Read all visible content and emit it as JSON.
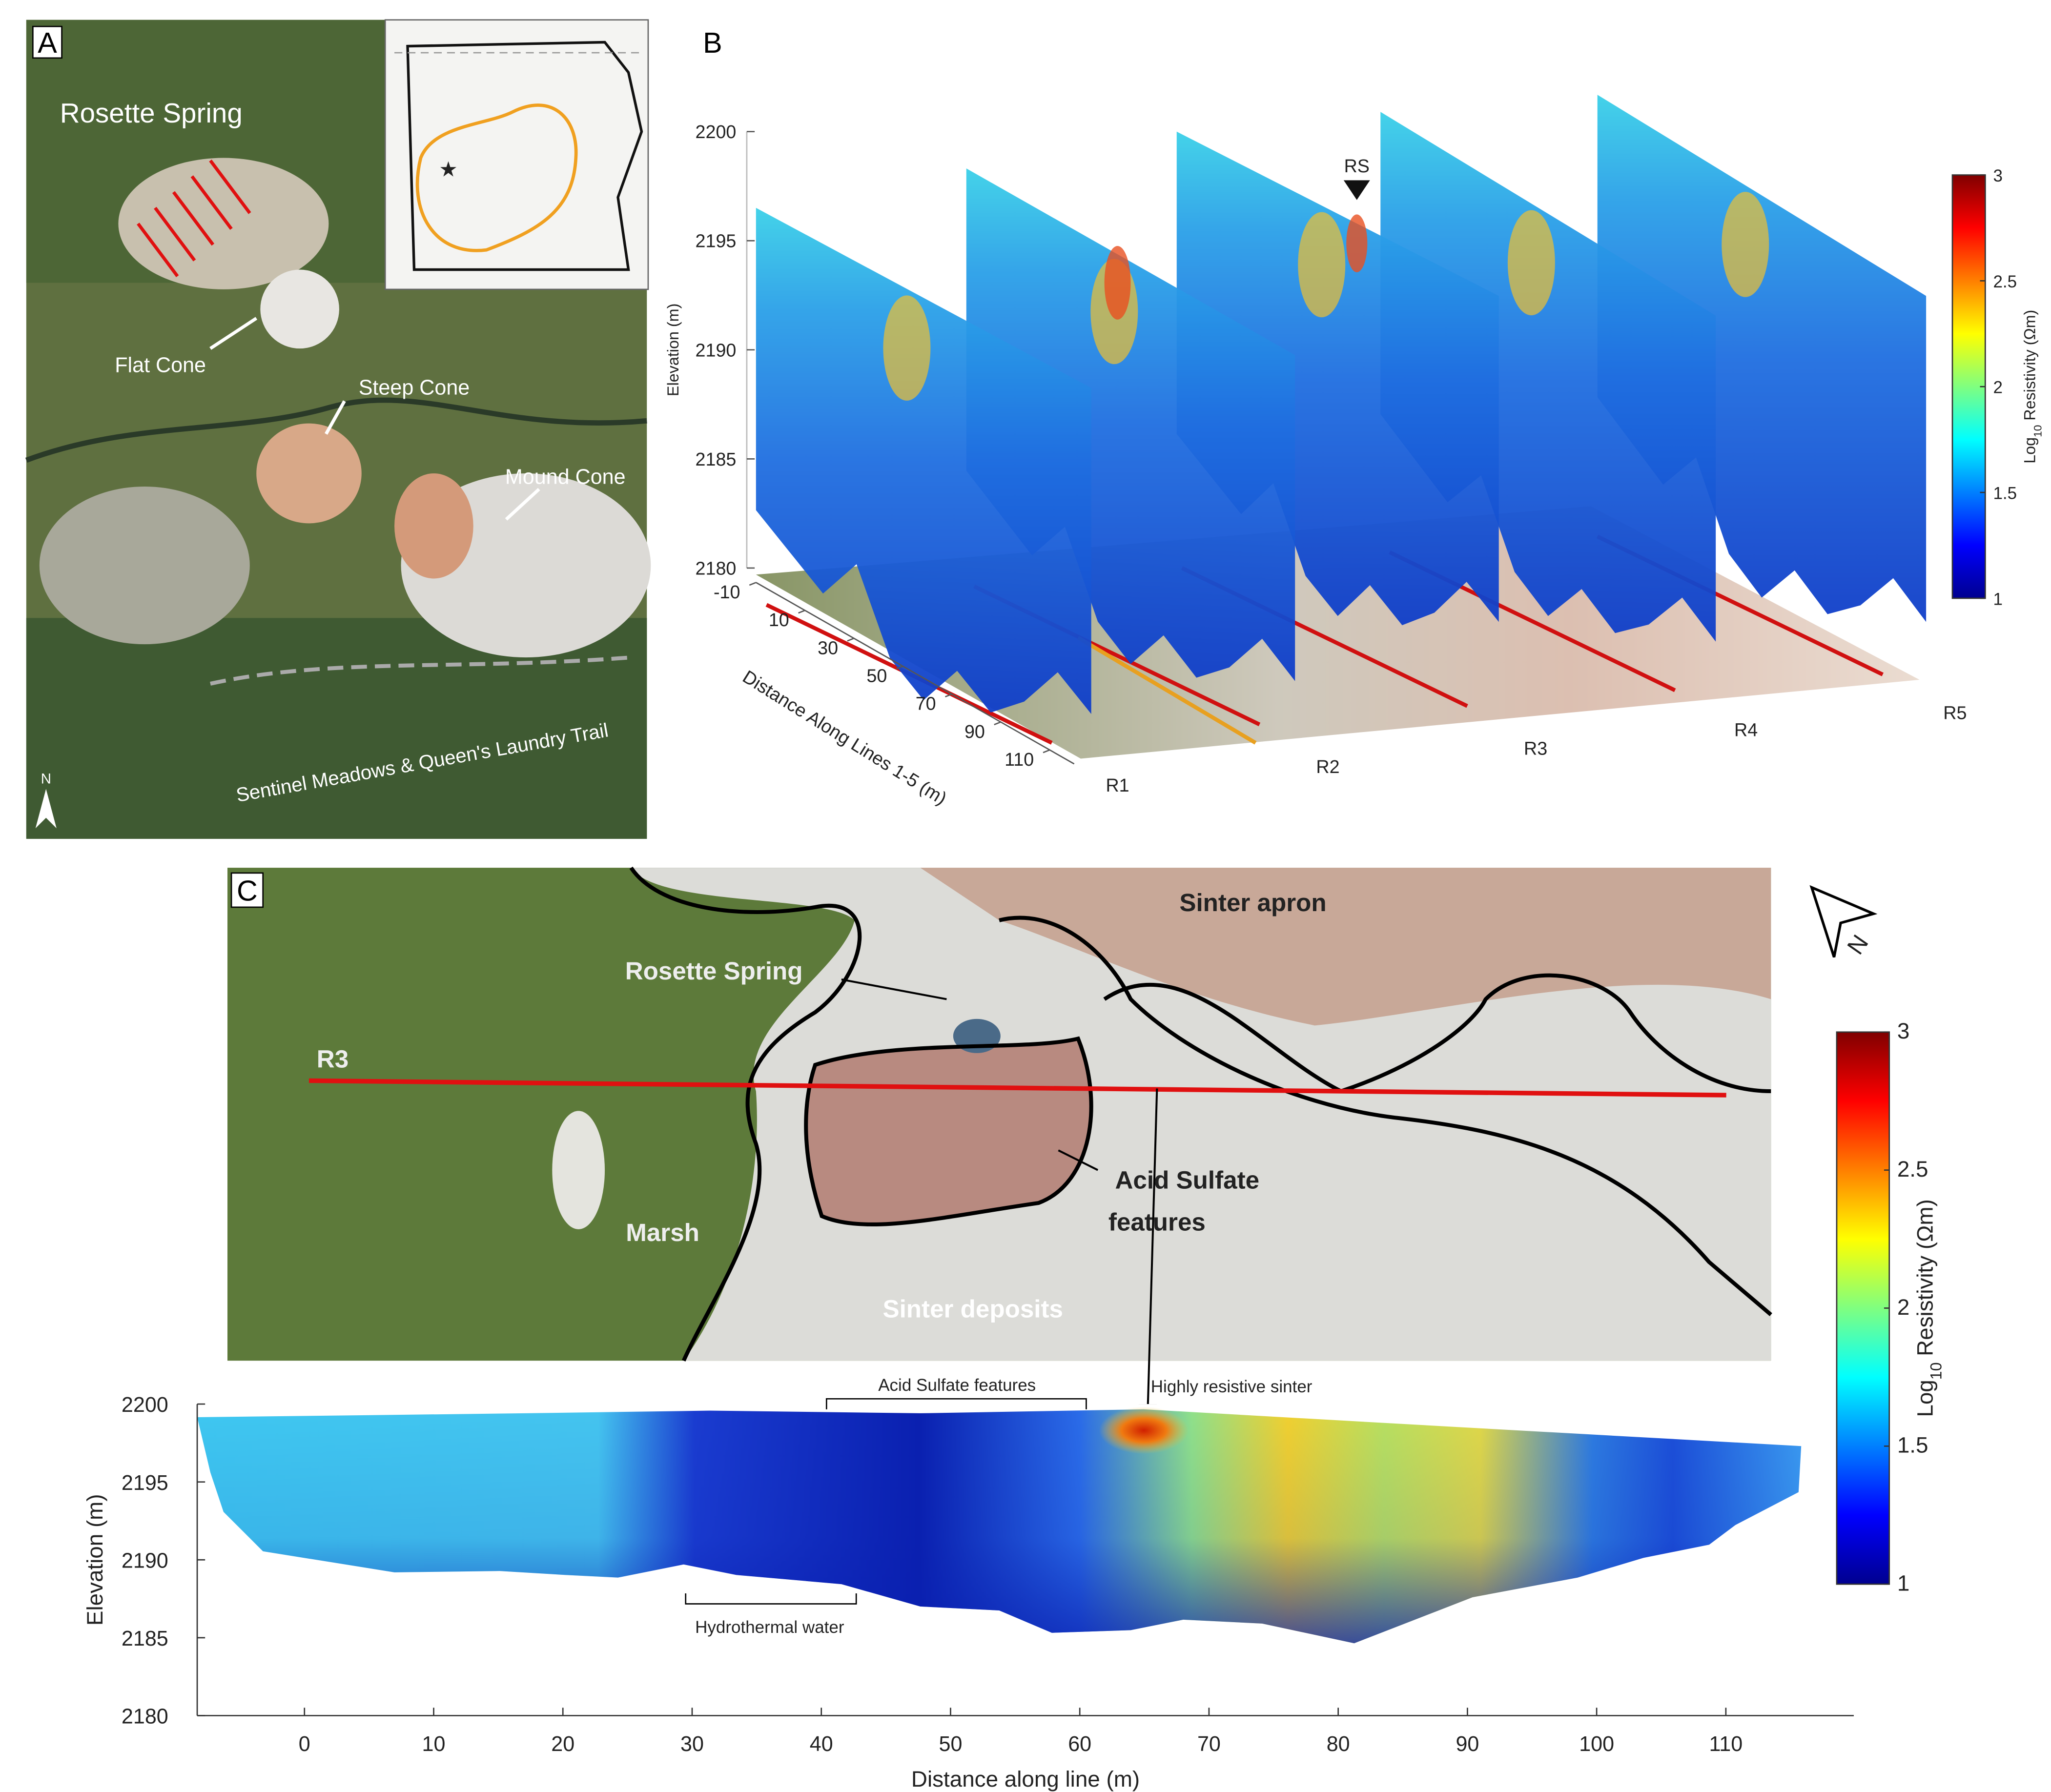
{
  "panels": {
    "a": {
      "label": "A",
      "annotations": [
        "Rosette Spring",
        "Flat Cone",
        "Steep Cone",
        "Mound Cone"
      ],
      "trail": "Sentinel Meadows & Queen's Laundry Trail",
      "north": "N"
    },
    "c_map": {
      "label": "C",
      "annotations": [
        "Sinter apron",
        "Rosette Spring",
        "Marsh",
        "Sinter deposits"
      ],
      "acid": [
        "Acid Sulfate",
        "features"
      ],
      "line": "R3",
      "north": "N"
    }
  },
  "chart_data": [
    {
      "type": "fence3d",
      "label": "B",
      "ylabel": "Elevation (m)",
      "ylim": [
        2180,
        2200
      ],
      "yticks": [
        2180,
        2185,
        2190,
        2195,
        2200
      ],
      "xlabel": "Distance Along Lines 1-5 (m)",
      "xlim": [
        -10,
        120
      ],
      "xticks": [
        -10,
        10,
        30,
        50,
        70,
        90,
        110
      ],
      "lines": [
        "R1",
        "R2",
        "R3",
        "R4",
        "R5"
      ],
      "marker": "RS",
      "colorbar": {
        "label": [
          "Log",
          "10",
          " Resistivity (Ωm)"
        ],
        "lim": [
          1,
          3
        ],
        "ticks": [
          1,
          1.5,
          2,
          2.5,
          3
        ]
      }
    },
    {
      "type": "section",
      "xlabel": "Distance along line (m)",
      "ylabel": "Elevation (m)",
      "xlim": [
        -8.3,
        119.9
      ],
      "xticks": [
        0,
        10,
        20,
        30,
        40,
        50,
        60,
        70,
        80,
        90,
        100,
        110
      ],
      "ylim": [
        2180,
        2200
      ],
      "yticks": [
        2180,
        2185,
        2190,
        2195,
        2200
      ],
      "annotations": [
        "Acid Sulfate features",
        "Highly resistive sinter",
        "Hydrothermal water"
      ],
      "colorbar": {
        "label": [
          "Log",
          "10",
          " Resistivity (Ωm)"
        ],
        "lim": [
          1,
          3
        ],
        "ticks": [
          1,
          1.5,
          2,
          2.5,
          3
        ]
      }
    }
  ]
}
